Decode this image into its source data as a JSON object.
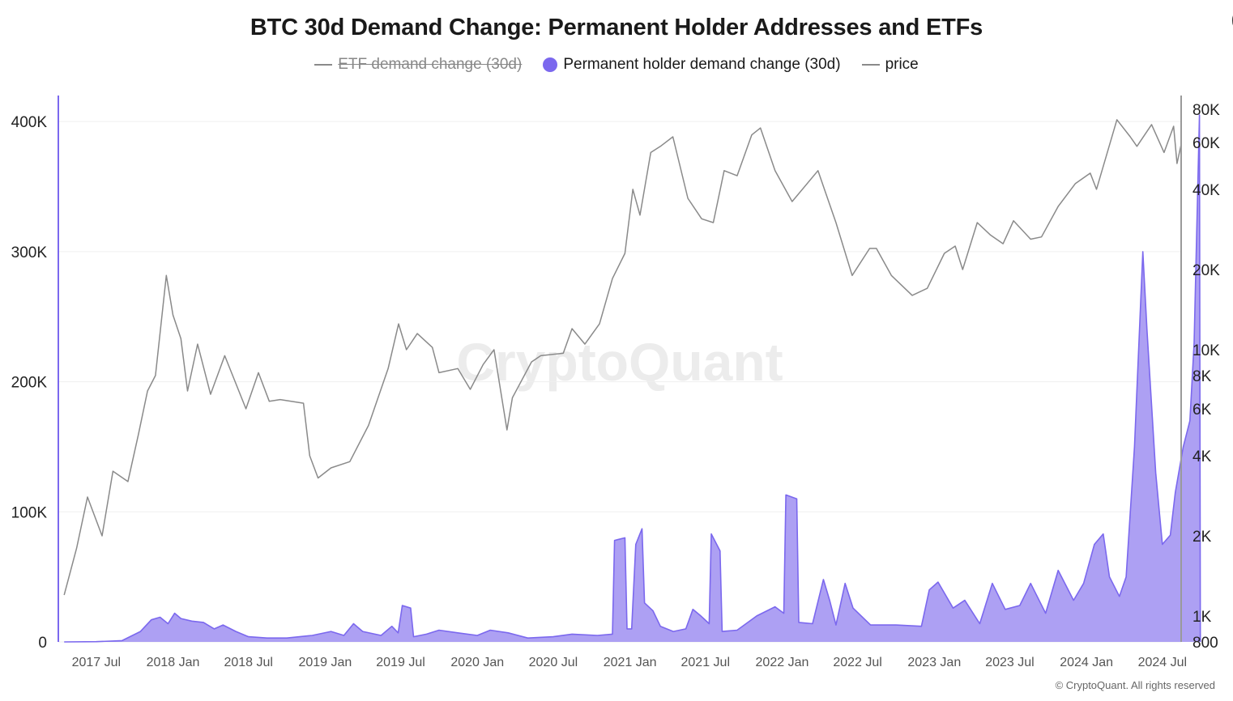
{
  "chart_data": {
    "type": "area",
    "title": "BTC 30d Demand Change: Permanent Holder Addresses and ETFs",
    "legend": [
      {
        "name": "ETF demand change (30d)",
        "disabled": true,
        "color": "#8a8a8a",
        "marker": "line"
      },
      {
        "name": "Permanent holder demand change (30d)",
        "disabled": false,
        "color": "#7b68ee",
        "marker": "dot"
      },
      {
        "name": "price",
        "disabled": false,
        "color": "#8a8a8a",
        "marker": "line"
      }
    ],
    "x_ticks": [
      "2017 Jul",
      "2018 Jan",
      "2018 Jul",
      "2019 Jan",
      "2019 Jul",
      "2020 Jan",
      "2020 Jul",
      "2021 Jan",
      "2021 Jul",
      "2022 Jan",
      "2022 Jul",
      "2023 Jan",
      "2023 Jul",
      "2024 Jan",
      "2024 Jul"
    ],
    "x_range": [
      "2017-04-01",
      "2024-08-15"
    ],
    "y_left": {
      "ticks": [
        "0",
        "100K",
        "200K",
        "300K",
        "400K"
      ],
      "tick_values": [
        0,
        100000,
        200000,
        300000,
        400000
      ],
      "range": [
        0,
        420000
      ]
    },
    "y_right": {
      "scale": "log",
      "ticks": [
        "800",
        "1K",
        "2K",
        "4K",
        "6K",
        "8K",
        "10K",
        "20K",
        "40K",
        "60K",
        "80K"
      ],
      "tick_values": [
        800,
        1000,
        2000,
        4000,
        6000,
        8000,
        10000,
        20000,
        40000,
        60000,
        80000
      ],
      "range": [
        800,
        90000
      ]
    },
    "series": [
      {
        "name": "Permanent holder demand change (30d)",
        "axis": "left",
        "color": "#7b68ee",
        "fill": "#a99bf2",
        "points": [
          [
            "2017-04-15",
            0
          ],
          [
            "2017-07-01",
            200
          ],
          [
            "2017-09-01",
            1000
          ],
          [
            "2017-10-15",
            8000
          ],
          [
            "2017-11-10",
            17000
          ],
          [
            "2017-12-01",
            19000
          ],
          [
            "2017-12-20",
            14000
          ],
          [
            "2018-01-05",
            22000
          ],
          [
            "2018-01-20",
            18000
          ],
          [
            "2018-02-15",
            16000
          ],
          [
            "2018-03-15",
            15000
          ],
          [
            "2018-04-10",
            10000
          ],
          [
            "2018-05-01",
            13000
          ],
          [
            "2018-06-01",
            8000
          ],
          [
            "2018-07-01",
            4000
          ],
          [
            "2018-08-15",
            3000
          ],
          [
            "2018-10-01",
            3000
          ],
          [
            "2018-12-01",
            5000
          ],
          [
            "2019-01-15",
            8000
          ],
          [
            "2019-02-15",
            5000
          ],
          [
            "2019-03-10",
            14000
          ],
          [
            "2019-04-01",
            8000
          ],
          [
            "2019-05-15",
            5000
          ],
          [
            "2019-06-10",
            12000
          ],
          [
            "2019-06-25",
            7000
          ],
          [
            "2019-07-05",
            28000
          ],
          [
            "2019-07-25",
            26000
          ],
          [
            "2019-08-01",
            4000
          ],
          [
            "2019-09-01",
            6000
          ],
          [
            "2019-10-01",
            9000
          ],
          [
            "2019-11-15",
            7000
          ],
          [
            "2020-01-01",
            5000
          ],
          [
            "2020-02-01",
            9000
          ],
          [
            "2020-03-15",
            7000
          ],
          [
            "2020-05-01",
            3000
          ],
          [
            "2020-07-01",
            4000
          ],
          [
            "2020-08-15",
            6000
          ],
          [
            "2020-10-15",
            5000
          ],
          [
            "2020-11-20",
            6000
          ],
          [
            "2020-11-25",
            78000
          ],
          [
            "2020-12-20",
            80000
          ],
          [
            "2020-12-25",
            10000
          ],
          [
            "2021-01-05",
            10000
          ],
          [
            "2021-01-15",
            75000
          ],
          [
            "2021-01-30",
            87000
          ],
          [
            "2021-02-05",
            30000
          ],
          [
            "2021-02-25",
            24000
          ],
          [
            "2021-03-15",
            12000
          ],
          [
            "2021-04-15",
            8000
          ],
          [
            "2021-05-15",
            10000
          ],
          [
            "2021-06-01",
            25000
          ],
          [
            "2021-06-20",
            20000
          ],
          [
            "2021-07-10",
            14000
          ],
          [
            "2021-07-15",
            83000
          ],
          [
            "2021-08-05",
            70000
          ],
          [
            "2021-08-10",
            8000
          ],
          [
            "2021-09-15",
            9000
          ],
          [
            "2021-11-01",
            20000
          ],
          [
            "2021-12-15",
            27000
          ],
          [
            "2022-01-05",
            22000
          ],
          [
            "2022-01-10",
            113000
          ],
          [
            "2022-02-05",
            110000
          ],
          [
            "2022-02-10",
            15000
          ],
          [
            "2022-03-15",
            14000
          ],
          [
            "2022-04-10",
            48000
          ],
          [
            "2022-04-25",
            32000
          ],
          [
            "2022-05-10",
            13000
          ],
          [
            "2022-06-01",
            45000
          ],
          [
            "2022-06-20",
            26000
          ],
          [
            "2022-08-01",
            13000
          ],
          [
            "2022-10-01",
            13000
          ],
          [
            "2022-12-01",
            12000
          ],
          [
            "2022-12-20",
            40000
          ],
          [
            "2023-01-10",
            46000
          ],
          [
            "2023-02-15",
            26000
          ],
          [
            "2023-03-15",
            32000
          ],
          [
            "2023-04-20",
            14000
          ],
          [
            "2023-05-20",
            45000
          ],
          [
            "2023-06-20",
            25000
          ],
          [
            "2023-07-25",
            28000
          ],
          [
            "2023-08-20",
            45000
          ],
          [
            "2023-09-25",
            22000
          ],
          [
            "2023-10-25",
            55000
          ],
          [
            "2023-12-01",
            32000
          ],
          [
            "2023-12-25",
            45000
          ],
          [
            "2024-01-20",
            75000
          ],
          [
            "2024-02-10",
            83000
          ],
          [
            "2024-02-25",
            50000
          ],
          [
            "2024-03-20",
            35000
          ],
          [
            "2024-04-05",
            50000
          ],
          [
            "2024-04-25",
            150000
          ],
          [
            "2024-05-15",
            300000
          ],
          [
            "2024-05-25",
            240000
          ],
          [
            "2024-06-15",
            130000
          ],
          [
            "2024-07-01",
            75000
          ],
          [
            "2024-07-20",
            82000
          ],
          [
            "2024-08-01",
            115000
          ],
          [
            "2024-08-20",
            150000
          ],
          [
            "2024-09-05",
            170000
          ],
          [
            "2024-09-15",
            230000
          ],
          [
            "2024-09-28",
            405000
          ],
          [
            "2024-09-30",
            0
          ]
        ]
      },
      {
        "name": "price",
        "axis": "right",
        "color": "#8a8a8a",
        "points": [
          [
            "2017-04-15",
            1200
          ],
          [
            "2017-05-15",
            1800
          ],
          [
            "2017-06-10",
            2800
          ],
          [
            "2017-07-15",
            2000
          ],
          [
            "2017-08-10",
            3500
          ],
          [
            "2017-09-15",
            3200
          ],
          [
            "2017-10-10",
            4800
          ],
          [
            "2017-11-01",
            7000
          ],
          [
            "2017-11-20",
            8000
          ],
          [
            "2017-12-16",
            19000
          ],
          [
            "2018-01-01",
            13500
          ],
          [
            "2018-01-20",
            11000
          ],
          [
            "2018-02-05",
            7000
          ],
          [
            "2018-03-01",
            10500
          ],
          [
            "2018-04-01",
            6800
          ],
          [
            "2018-05-05",
            9500
          ],
          [
            "2018-06-25",
            6000
          ],
          [
            "2018-07-25",
            8200
          ],
          [
            "2018-08-20",
            6400
          ],
          [
            "2018-09-15",
            6500
          ],
          [
            "2018-11-10",
            6300
          ],
          [
            "2018-11-25",
            4000
          ],
          [
            "2018-12-15",
            3300
          ],
          [
            "2019-01-15",
            3600
          ],
          [
            "2019-03-01",
            3800
          ],
          [
            "2019-04-15",
            5200
          ],
          [
            "2019-06-01",
            8500
          ],
          [
            "2019-06-26",
            12500
          ],
          [
            "2019-07-15",
            10000
          ],
          [
            "2019-08-10",
            11500
          ],
          [
            "2019-09-15",
            10200
          ],
          [
            "2019-10-01",
            8200
          ],
          [
            "2019-11-15",
            8500
          ],
          [
            "2019-12-15",
            7100
          ],
          [
            "2020-01-15",
            8800
          ],
          [
            "2020-02-10",
            10000
          ],
          [
            "2020-03-12",
            5000
          ],
          [
            "2020-03-25",
            6600
          ],
          [
            "2020-05-10",
            9000
          ],
          [
            "2020-06-01",
            9500
          ],
          [
            "2020-07-25",
            9700
          ],
          [
            "2020-08-15",
            12000
          ],
          [
            "2020-09-15",
            10500
          ],
          [
            "2020-10-20",
            12500
          ],
          [
            "2020-11-20",
            18500
          ],
          [
            "2020-12-20",
            23000
          ],
          [
            "2021-01-08",
            40000
          ],
          [
            "2021-01-25",
            32000
          ],
          [
            "2021-02-20",
            55000
          ],
          [
            "2021-03-15",
            58000
          ],
          [
            "2021-04-14",
            63000
          ],
          [
            "2021-05-20",
            37000
          ],
          [
            "2021-06-22",
            31000
          ],
          [
            "2021-07-20",
            30000
          ],
          [
            "2021-08-15",
            47000
          ],
          [
            "2021-09-15",
            45000
          ],
          [
            "2021-10-20",
            64000
          ],
          [
            "2021-11-10",
            68000
          ],
          [
            "2021-12-15",
            47000
          ],
          [
            "2022-01-25",
            36000
          ],
          [
            "2022-03-28",
            47000
          ],
          [
            "2022-05-10",
            30000
          ],
          [
            "2022-06-18",
            19000
          ],
          [
            "2022-07-30",
            24000
          ],
          [
            "2022-08-15",
            24000
          ],
          [
            "2022-09-20",
            19000
          ],
          [
            "2022-11-09",
            16000
          ],
          [
            "2022-12-15",
            17000
          ],
          [
            "2023-01-25",
            23000
          ],
          [
            "2023-02-20",
            24500
          ],
          [
            "2023-03-10",
            20000
          ],
          [
            "2023-04-14",
            30000
          ],
          [
            "2023-05-15",
            27000
          ],
          [
            "2023-06-15",
            25000
          ],
          [
            "2023-07-10",
            30500
          ],
          [
            "2023-08-20",
            26000
          ],
          [
            "2023-09-15",
            26500
          ],
          [
            "2023-10-25",
            34500
          ],
          [
            "2023-12-05",
            42000
          ],
          [
            "2024-01-10",
            46000
          ],
          [
            "2024-01-25",
            40000
          ],
          [
            "2024-03-14",
            73000
          ],
          [
            "2024-04-15",
            63000
          ],
          [
            "2024-05-01",
            58000
          ],
          [
            "2024-06-05",
            70000
          ],
          [
            "2024-07-05",
            55000
          ],
          [
            "2024-07-28",
            69000
          ],
          [
            "2024-08-05",
            50000
          ],
          [
            "2024-08-15",
            59000
          ]
        ]
      }
    ],
    "grid": true,
    "watermark": "CryptoQuant"
  },
  "credit": "© CryptoQuant. All rights reserved"
}
